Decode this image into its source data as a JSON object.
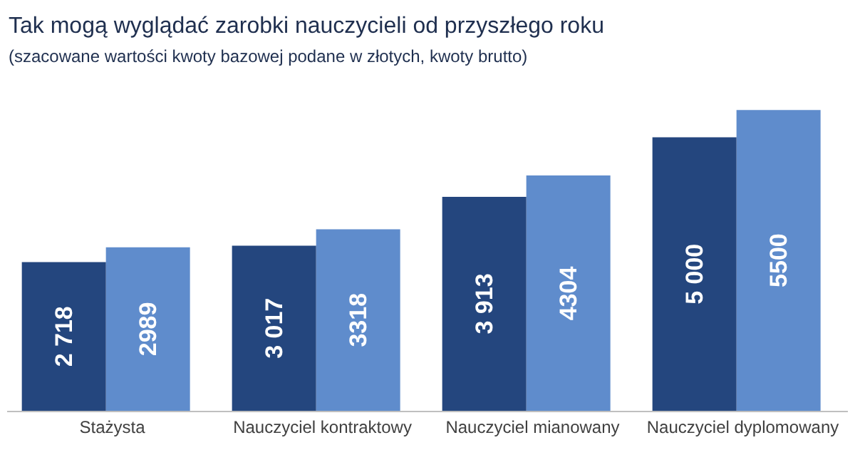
{
  "chart_data": {
    "type": "bar",
    "title": "Tak mogą wyglądać zarobki nauczycieli od przyszłego roku",
    "subtitle": "(szacowane wartości kwoty bazowej podane w złotych, kwoty brutto)",
    "categories": [
      "Stażysta",
      "Nauczyciel kontraktowy",
      "Nauczyciel mianowany",
      "Nauczyciel dyplomowany"
    ],
    "series": [
      {
        "color": "#24467e",
        "values": [
          2718,
          3017,
          3913,
          5000
        ],
        "value_labels": [
          "2 718",
          "3 017",
          "3 913",
          "5 000"
        ]
      },
      {
        "color": "#5f8ccc",
        "values": [
          2989,
          3318,
          4304,
          5500
        ],
        "value_labels": [
          "2989",
          "3318",
          "4304",
          "5500"
        ]
      }
    ]
  }
}
